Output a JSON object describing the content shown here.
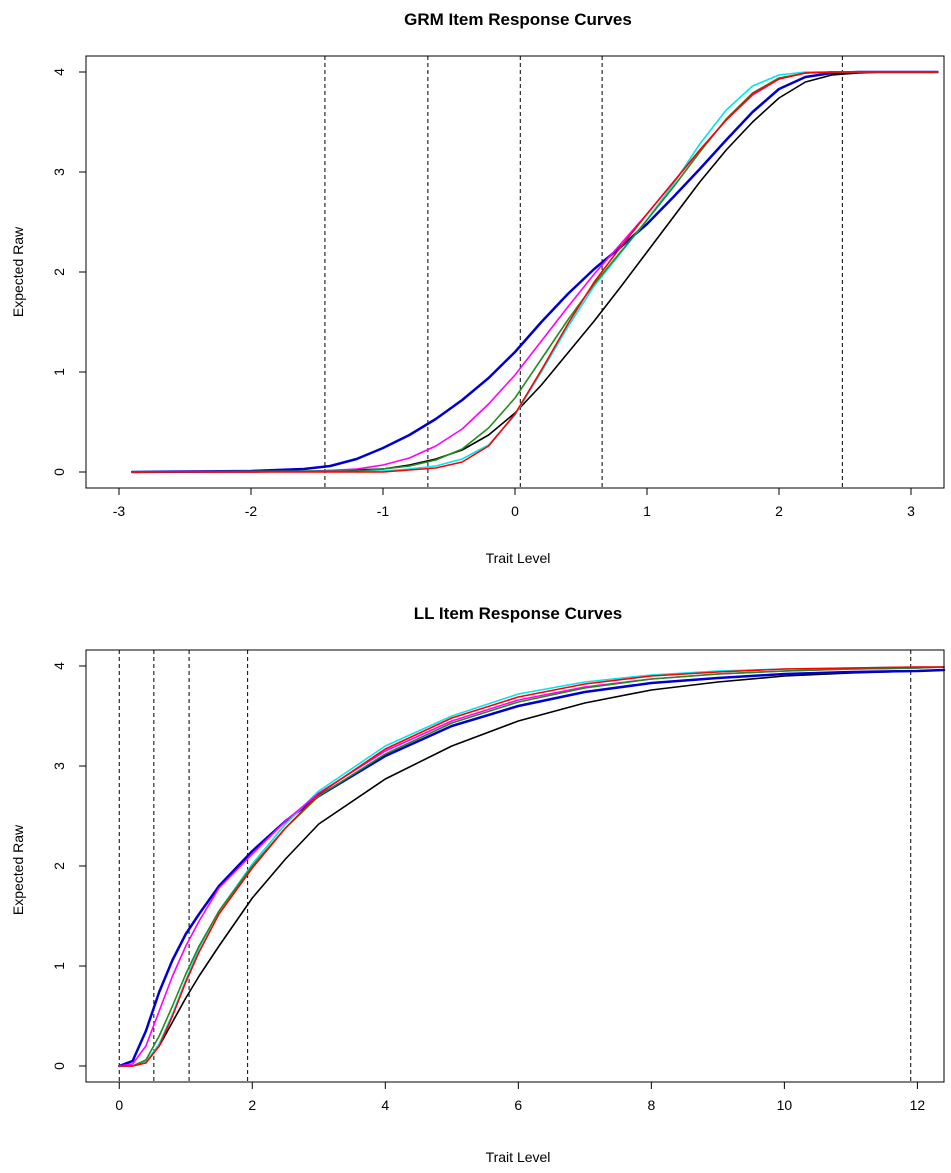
{
  "chart_data": [
    {
      "type": "line",
      "title": "GRM Item Response Curves",
      "xlabel": "Trait Level",
      "ylabel": "Expected Raw",
      "xlim": [
        -3.25,
        3.25
      ],
      "ylim": [
        -0.16,
        4.16
      ],
      "xticks": [
        -3,
        -2,
        -1,
        0,
        1,
        2,
        3
      ],
      "yticks": [
        0,
        1,
        2,
        3,
        4
      ],
      "vlines": [
        -1.44,
        -0.66,
        0.04,
        0.66,
        2.48
      ],
      "grid": false,
      "series": [
        {
          "color": "#000000",
          "x": [
            -2.9,
            -2,
            -1.5,
            -1,
            -0.8,
            -0.6,
            -0.4,
            -0.2,
            0,
            0.2,
            0.4,
            0.6,
            0.8,
            1,
            1.2,
            1.4,
            1.6,
            1.8,
            2,
            2.2,
            2.4,
            2.6,
            2.8,
            3.2
          ],
          "y": [
            0,
            0,
            0.01,
            0.03,
            0.07,
            0.13,
            0.22,
            0.37,
            0.59,
            0.87,
            1.19,
            1.51,
            1.85,
            2.2,
            2.55,
            2.9,
            3.22,
            3.5,
            3.74,
            3.9,
            3.97,
            3.99,
            4,
            4
          ]
        },
        {
          "color": "#0000cd",
          "x": [
            -2.9,
            -2,
            -1.6,
            -1.4,
            -1.2,
            -1,
            -0.8,
            -0.6,
            -0.4,
            -0.2,
            0,
            0.2,
            0.4,
            0.6,
            0.8,
            1,
            1.2,
            1.4,
            1.6,
            1.8,
            2,
            2.2,
            2.4,
            2.6,
            2.8,
            3.2
          ],
          "y": [
            0,
            0.01,
            0.03,
            0.06,
            0.13,
            0.24,
            0.37,
            0.53,
            0.72,
            0.94,
            1.2,
            1.5,
            1.78,
            2.03,
            2.25,
            2.48,
            2.75,
            3.03,
            3.32,
            3.6,
            3.83,
            3.95,
            3.99,
            4,
            4,
            4
          ]
        },
        {
          "color": "#00e5ee",
          "x": [
            -2.9,
            -1,
            -0.8,
            -0.6,
            -0.4,
            -0.2,
            0,
            0.2,
            0.4,
            0.6,
            0.8,
            1,
            1.2,
            1.4,
            1.6,
            1.8,
            2,
            2.2,
            2.4,
            2.6,
            3.2
          ],
          "y": [
            0,
            0.01,
            0.03,
            0.06,
            0.13,
            0.27,
            0.57,
            1,
            1.45,
            1.86,
            2.19,
            2.52,
            2.88,
            3.28,
            3.62,
            3.86,
            3.97,
            4,
            4,
            4,
            4
          ]
        },
        {
          "color": "#ff00ff",
          "x": [
            -2.9,
            -1.5,
            -1.2,
            -1,
            -0.8,
            -0.6,
            -0.4,
            -0.2,
            0,
            0.2,
            0.4,
            0.6,
            0.8,
            1,
            1.2,
            1.4,
            1.6,
            1.8,
            2,
            2.2,
            2.4,
            3.2
          ],
          "y": [
            0,
            0.01,
            0.03,
            0.07,
            0.14,
            0.26,
            0.43,
            0.68,
            0.97,
            1.31,
            1.65,
            1.98,
            2.28,
            2.58,
            2.9,
            3.22,
            3.52,
            3.77,
            3.93,
            3.99,
            4,
            4
          ]
        },
        {
          "color": "#228b22",
          "x": [
            -2.9,
            -1.2,
            -1,
            -0.8,
            -0.6,
            -0.4,
            -0.2,
            0,
            0.2,
            0.4,
            0.6,
            0.8,
            1,
            1.2,
            1.4,
            1.6,
            1.8,
            2,
            2.2,
            2.4,
            2.6,
            3.2
          ],
          "y": [
            0,
            0.01,
            0.03,
            0.06,
            0.12,
            0.23,
            0.44,
            0.74,
            1.13,
            1.52,
            1.88,
            2.2,
            2.52,
            2.85,
            3.2,
            3.53,
            3.79,
            3.94,
            3.99,
            4,
            4,
            4
          ]
        },
        {
          "color": "#ff0000",
          "x": [
            -2.9,
            -1,
            -0.8,
            -0.6,
            -0.4,
            -0.2,
            0,
            0.2,
            0.4,
            0.6,
            0.8,
            1,
            1.2,
            1.4,
            1.6,
            1.8,
            2,
            2.2,
            2.4,
            2.6,
            3.2
          ],
          "y": [
            0,
            0,
            0.02,
            0.04,
            0.1,
            0.26,
            0.58,
            1.02,
            1.48,
            1.9,
            2.25,
            2.58,
            2.9,
            3.22,
            3.52,
            3.78,
            3.93,
            3.99,
            4,
            4,
            4
          ]
        }
      ]
    },
    {
      "type": "line",
      "title": "LL Item Response Curves",
      "xlabel": "Trait Level",
      "ylabel": "Expected Raw",
      "xlim": [
        -0.5,
        12.4
      ],
      "ylim": [
        -0.16,
        4.16
      ],
      "xticks": [
        0,
        2,
        4,
        6,
        8,
        10,
        12
      ],
      "yticks": [
        0,
        1,
        2,
        3,
        4
      ],
      "vlines": [
        0.0,
        0.52,
        1.05,
        1.93,
        11.9
      ],
      "grid": false,
      "series": [
        {
          "color": "#000000",
          "x": [
            0,
            0.2,
            0.4,
            0.6,
            0.8,
            1,
            1.2,
            1.5,
            2,
            2.5,
            3,
            4,
            5,
            6,
            7,
            8,
            9,
            10,
            11,
            12,
            12.4
          ],
          "y": [
            0,
            0,
            0.04,
            0.2,
            0.44,
            0.68,
            0.9,
            1.2,
            1.68,
            2.07,
            2.42,
            2.87,
            3.2,
            3.45,
            3.63,
            3.76,
            3.84,
            3.9,
            3.93,
            3.95,
            3.96
          ]
        },
        {
          "color": "#0000cd",
          "x": [
            0,
            0.2,
            0.4,
            0.6,
            0.8,
            1,
            1.2,
            1.5,
            2,
            2.5,
            3,
            4,
            5,
            6,
            7,
            8,
            9,
            10,
            11,
            12,
            12.4
          ],
          "y": [
            0,
            0.05,
            0.35,
            0.74,
            1.06,
            1.32,
            1.52,
            1.8,
            2.15,
            2.45,
            2.7,
            3.1,
            3.4,
            3.6,
            3.74,
            3.83,
            3.88,
            3.92,
            3.94,
            3.95,
            3.96
          ]
        },
        {
          "color": "#00e5ee",
          "x": [
            0,
            0.2,
            0.4,
            0.6,
            0.8,
            1,
            1.2,
            1.5,
            2,
            2.5,
            3,
            4,
            5,
            6,
            7,
            8,
            9,
            10,
            11,
            12,
            12.4
          ],
          "y": [
            0,
            0,
            0.04,
            0.22,
            0.52,
            0.86,
            1.18,
            1.55,
            2.02,
            2.42,
            2.75,
            3.2,
            3.5,
            3.72,
            3.84,
            3.91,
            3.95,
            3.97,
            3.98,
            3.99,
            3.99
          ]
        },
        {
          "color": "#ff00ff",
          "x": [
            0,
            0.2,
            0.4,
            0.6,
            0.8,
            1,
            1.2,
            1.5,
            2,
            2.5,
            3,
            4,
            5,
            6,
            7,
            8,
            9,
            10,
            11,
            12,
            12.4
          ],
          "y": [
            0,
            0.02,
            0.2,
            0.55,
            0.9,
            1.2,
            1.45,
            1.78,
            2.12,
            2.45,
            2.73,
            3.15,
            3.45,
            3.66,
            3.79,
            3.87,
            3.92,
            3.95,
            3.97,
            3.98,
            3.99
          ]
        },
        {
          "color": "#228b22",
          "x": [
            0,
            0.2,
            0.4,
            0.6,
            0.8,
            1,
            1.2,
            1.5,
            2,
            2.5,
            3,
            4,
            5,
            6,
            7,
            8,
            9,
            10,
            11,
            12,
            12.4
          ],
          "y": [
            0,
            0,
            0.06,
            0.3,
            0.6,
            0.92,
            1.2,
            1.55,
            2,
            2.38,
            2.7,
            3.12,
            3.43,
            3.64,
            3.78,
            3.87,
            3.92,
            3.95,
            3.97,
            3.98,
            3.99
          ]
        },
        {
          "color": "#ff0000",
          "x": [
            0,
            0.2,
            0.4,
            0.6,
            0.8,
            1,
            1.2,
            1.5,
            2,
            2.5,
            3,
            4,
            5,
            6,
            7,
            8,
            9,
            10,
            11,
            12,
            12.4
          ],
          "y": [
            0,
            0,
            0.03,
            0.2,
            0.5,
            0.84,
            1.14,
            1.52,
            1.98,
            2.38,
            2.72,
            3.17,
            3.48,
            3.69,
            3.82,
            3.9,
            3.94,
            3.97,
            3.98,
            3.99,
            3.99
          ]
        }
      ]
    }
  ]
}
